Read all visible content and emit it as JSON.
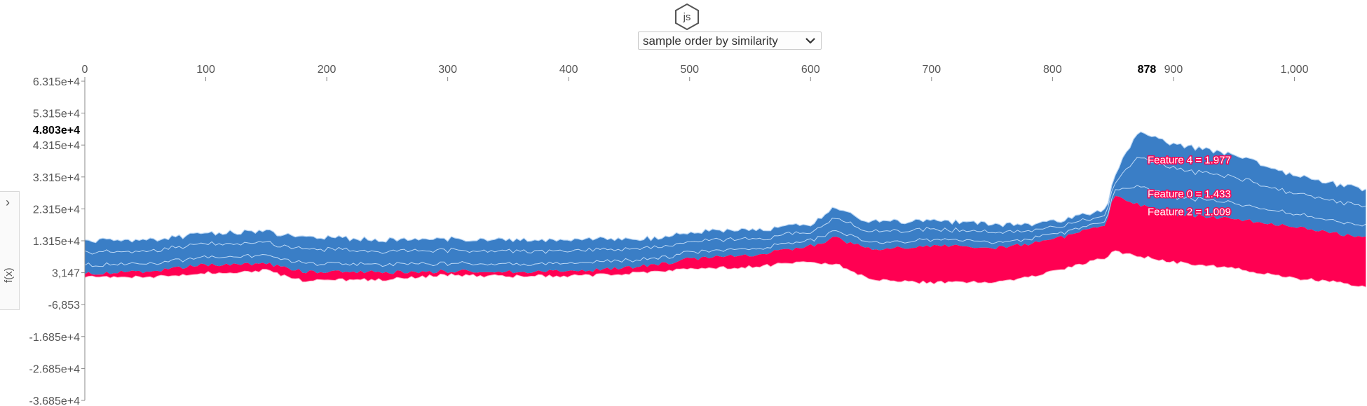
{
  "header": {
    "logo_text": "js",
    "order_select": {
      "selected": "sample order by similarity",
      "options": [
        "sample order by similarity"
      ]
    }
  },
  "side_panel": {
    "label": "f(x)",
    "expand_icon": "chevron-right-icon"
  },
  "colors": {
    "positive": "#ff0052",
    "negative": "#3a7ec6",
    "line": "#bcd8f5",
    "axis": "#888888"
  },
  "chart_data": {
    "type": "area",
    "xlim": [
      0,
      1060
    ],
    "ylim": [
      -36850,
      63150
    ],
    "x_ticks": [
      "0",
      "100",
      "200",
      "300",
      "400",
      "500",
      "600",
      "700",
      "800",
      "900",
      "1,000"
    ],
    "x_tick_values": [
      0,
      100,
      200,
      300,
      400,
      500,
      600,
      700,
      800,
      900,
      1000
    ],
    "y_ticks": [
      "6.315e+4",
      "5.315e+4",
      "4.315e+4",
      "3.315e+4",
      "2.315e+4",
      "1.315e+4",
      "3,147",
      "-6,853",
      "-1.685e+4",
      "-2.685e+4",
      "-3.685e+4"
    ],
    "y_tick_values": [
      63150,
      53150,
      43150,
      33150,
      23150,
      13150,
      3147,
      -6853,
      -16850,
      -26850,
      -36850
    ],
    "highlight_x": {
      "label": "878",
      "value": 878
    },
    "highlight_y": {
      "label": "4.803e+4",
      "value": 48030
    },
    "grid": false,
    "key_points": {
      "x": [
        0,
        60,
        100,
        150,
        180,
        250,
        300,
        350,
        420,
        470,
        500,
        550,
        600,
        620,
        650,
        700,
        760,
        800,
        845,
        850,
        870,
        900,
        950,
        1000,
        1060
      ],
      "upper": [
        13300,
        13500,
        15500,
        16000,
        14300,
        13500,
        13800,
        13600,
        13600,
        14000,
        16000,
        16500,
        18200,
        23500,
        19000,
        19500,
        18000,
        19000,
        23000,
        33000,
        47000,
        43500,
        40000,
        33500,
        29000
      ],
      "boundary": [
        2900,
        3800,
        5700,
        6000,
        3600,
        3300,
        3600,
        3400,
        4000,
        5500,
        7500,
        8500,
        11500,
        14000,
        10500,
        11500,
        11000,
        13500,
        18000,
        27500,
        24500,
        21500,
        20000,
        17500,
        14000
      ],
      "lower": [
        1600,
        1800,
        3100,
        3800,
        600,
        1000,
        2500,
        2000,
        2300,
        3300,
        4200,
        5000,
        6500,
        6000,
        1000,
        0,
        300,
        3500,
        8000,
        10000,
        8500,
        6500,
        4500,
        1500,
        -1000
      ]
    },
    "annotations": [
      {
        "text": "Feature 4 = 1.977",
        "value": 1.977
      },
      {
        "text": "Feature 0 = 1.433",
        "value": 1.433
      },
      {
        "text": "Feature 2 = 1.009",
        "value": 1.009
      }
    ]
  }
}
